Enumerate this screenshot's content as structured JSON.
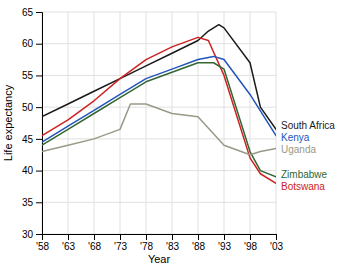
{
  "chart_data": {
    "type": "line",
    "xlabel": "Year",
    "ylabel": "Life expectancy",
    "xlim": [
      1958,
      2003
    ],
    "xticks": [
      {
        "value": 1958,
        "label": "'58"
      },
      {
        "value": 1963,
        "label": "'63"
      },
      {
        "value": 1968,
        "label": "'68"
      },
      {
        "value": 1973,
        "label": "'73"
      },
      {
        "value": 1978,
        "label": "'78"
      },
      {
        "value": 1983,
        "label": "'83"
      },
      {
        "value": 1988,
        "label": "'88"
      },
      {
        "value": 1993,
        "label": "'93"
      },
      {
        "value": 1998,
        "label": "'98"
      },
      {
        "value": 2003,
        "label": "'03"
      }
    ],
    "ylim": [
      30,
      65
    ],
    "yticks": [
      30,
      35,
      40,
      45,
      50,
      55,
      60,
      65
    ],
    "grid": true,
    "series": [
      {
        "name": "South Africa",
        "color": "#1a1a1a",
        "x": [
          1958,
          1963,
          1968,
          1973,
          1978,
          1983,
          1988,
          1990,
          1992,
          1993,
          1998,
          2000,
          2003
        ],
        "values": [
          48.5,
          50.5,
          52.5,
          54.5,
          56.5,
          58.5,
          60.5,
          62.0,
          63.0,
          62.5,
          57.0,
          50.0,
          46.5
        ]
      },
      {
        "name": "Botswana",
        "color": "#cc2222",
        "x": [
          1958,
          1963,
          1968,
          1973,
          1978,
          1983,
          1988,
          1990,
          1993,
          1998,
          2000,
          2003
        ],
        "values": [
          45.5,
          48.0,
          51.0,
          54.5,
          57.5,
          59.5,
          61.0,
          60.5,
          55.0,
          42.0,
          39.5,
          38.0
        ]
      },
      {
        "name": "Kenya",
        "color": "#2255bb",
        "x": [
          1958,
          1963,
          1968,
          1973,
          1978,
          1983,
          1988,
          1991,
          1993,
          1998,
          2003
        ],
        "values": [
          44.5,
          47.0,
          49.5,
          52.0,
          54.5,
          56.0,
          57.5,
          58.0,
          57.5,
          52.0,
          45.5
        ]
      },
      {
        "name": "Zimbabwe",
        "color": "#336633",
        "x": [
          1958,
          1963,
          1968,
          1973,
          1978,
          1983,
          1988,
          1991,
          1993,
          1998,
          2000,
          2003
        ],
        "values": [
          44.0,
          46.5,
          49.0,
          51.5,
          54.0,
          55.5,
          57.0,
          57.0,
          56.0,
          43.0,
          40.0,
          39.0
        ]
      },
      {
        "name": "Uganda",
        "color": "#999988",
        "x": [
          1958,
          1963,
          1968,
          1973,
          1975,
          1978,
          1983,
          1988,
          1993,
          1998,
          2000,
          2003
        ],
        "values": [
          43.0,
          44.0,
          45.0,
          46.5,
          50.5,
          50.5,
          49.0,
          48.5,
          44.0,
          42.5,
          43.0,
          43.5
        ]
      }
    ]
  }
}
